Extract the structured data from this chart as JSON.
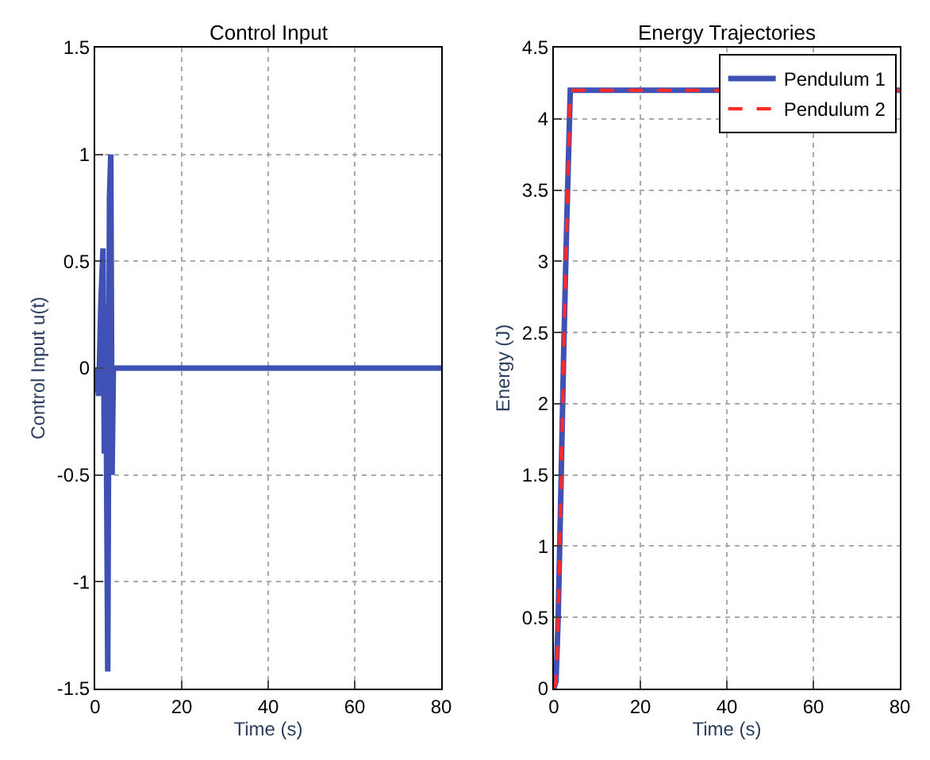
{
  "chart_data": [
    {
      "type": "line",
      "title": "Control Input",
      "xlabel": "Time (s)",
      "ylabel": "Control Input u(t)",
      "xlim": [
        0,
        80
      ],
      "xticks": [
        0,
        20,
        40,
        60,
        80
      ],
      "ylim": [
        -1.5,
        1.5
      ],
      "yticks": [
        -1.5,
        -1,
        -0.5,
        0,
        0.5,
        1,
        1.5
      ],
      "grid": true,
      "legend": false,
      "series": [
        {
          "color": "#3f51b5",
          "x": [
            0,
            0.3,
            0.8,
            1.3,
            1.8,
            2.1,
            2.4,
            2.9,
            3.3,
            3.6,
            3.9,
            4.2,
            80
          ],
          "values": [
            0,
            -0.05,
            -0.13,
            0.3,
            0.56,
            -0.4,
            0.3,
            -1.42,
            0.8,
            1.0,
            -0.5,
            0,
            0
          ]
        }
      ]
    },
    {
      "type": "line",
      "title": "Energy Trajectories",
      "xlabel": "Time (s)",
      "ylabel": "Energy (J)",
      "xlim": [
        0,
        80
      ],
      "xticks": [
        0,
        20,
        40,
        60,
        80
      ],
      "ylim": [
        0,
        4.5
      ],
      "yticks": [
        0,
        0.5,
        1,
        1.5,
        2,
        2.5,
        3,
        3.5,
        4,
        4.5
      ],
      "grid": true,
      "legend": "top right",
      "series": [
        {
          "name": "Pendulum 1",
          "color": "#3f51b5",
          "line_style": "solid",
          "x": [
            0,
            0.5,
            1,
            1.7,
            2.3,
            3,
            3.8,
            80
          ],
          "values": [
            0,
            0.05,
            0.5,
            1.5,
            2.4,
            3.3,
            4.2,
            4.2
          ]
        },
        {
          "name": "Pendulum 2",
          "color": "#ff2a2a",
          "line_style": "dashed",
          "x": [
            0,
            0.5,
            1,
            1.7,
            2.3,
            3,
            3.8,
            80
          ],
          "values": [
            0,
            0.05,
            0.5,
            1.5,
            2.4,
            3.3,
            4.2,
            4.2
          ]
        }
      ]
    }
  ]
}
